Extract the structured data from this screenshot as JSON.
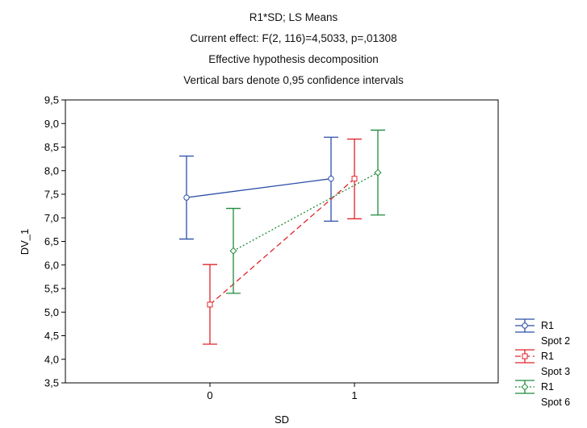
{
  "chart_data": {
    "type": "line",
    "title_lines": [
      "R1*SD; LS Means",
      "Current effect: F(2, 116)=4,5033, p=,01308",
      "Effective hypothesis decomposition",
      "Vertical bars denote 0,95 confidence intervals"
    ],
    "xlabel": "SD",
    "ylabel": "DV_1",
    "categories": [
      "0",
      "1"
    ],
    "ylim": [
      3.5,
      9.5
    ],
    "yticks": [
      "3,5",
      "4,0",
      "4,5",
      "5,0",
      "5,5",
      "6,0",
      "6,5",
      "7,0",
      "7,5",
      "8,0",
      "8,5",
      "9,0",
      "9,5"
    ],
    "grid": false,
    "legend_position": "right",
    "series": [
      {
        "legend_line1": "R1",
        "legend_line2": "Spot 2",
        "color": "#2b4ea8",
        "line_style": "solid",
        "marker": "circle",
        "values": [
          7.43,
          7.83
        ],
        "lower": [
          6.55,
          6.93
        ],
        "upper": [
          8.31,
          8.71
        ]
      },
      {
        "legend_line1": "R1",
        "legend_line2": "Spot 3",
        "color": "#e0242b",
        "line_style": "dashed",
        "marker": "square",
        "values": [
          5.16,
          7.83
        ],
        "lower": [
          4.32,
          6.98
        ],
        "upper": [
          6.01,
          8.67
        ]
      },
      {
        "legend_line1": "R1",
        "legend_line2": "Spot 6",
        "color": "#1f8a3a",
        "line_style": "dotted",
        "marker": "diamond",
        "values": [
          6.3,
          7.96
        ],
        "lower": [
          5.4,
          7.06
        ],
        "upper": [
          7.2,
          8.86
        ]
      }
    ]
  }
}
